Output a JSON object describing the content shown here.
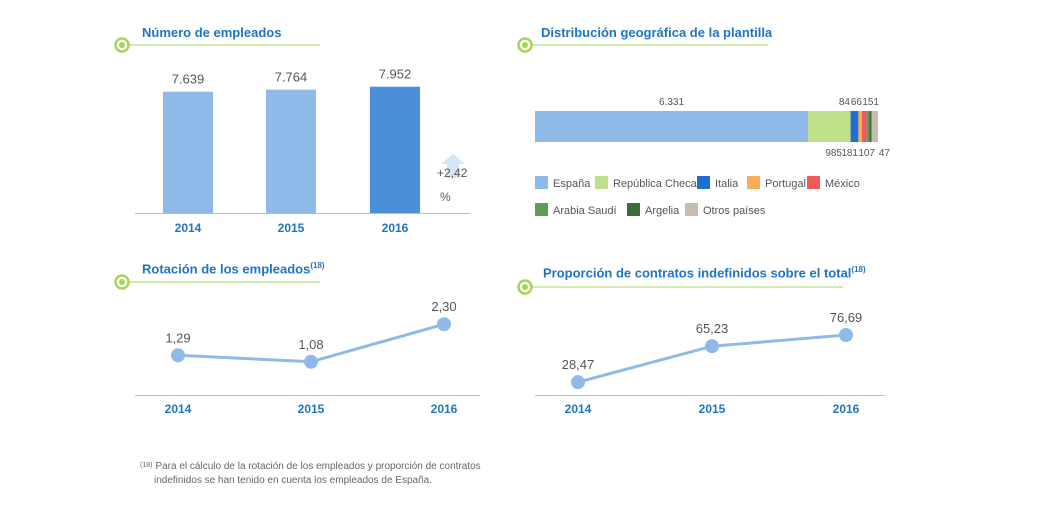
{
  "colors": {
    "accent_green": "#a6d45a",
    "title_blue": "#1f74c4",
    "bar_light": "#8fbae8",
    "bar_dark": "#4a90d9",
    "line": "#8fbae8",
    "point": "#8fbae8",
    "axis": "#bbbbbb",
    "arrow": "#d3e5f7"
  },
  "panels": {
    "employees": {
      "title": "Número de empleados",
      "change_value": "+2,42",
      "change_unit": "%",
      "change_icon": "up-arrow-icon"
    },
    "geo": {
      "title": "Distribución geográfica de la plantilla"
    },
    "rotation": {
      "title": "Rotación de los empleados",
      "title_sup": "(18)"
    },
    "contracts": {
      "title": "Proporción de contratos indefinidos sobre el total",
      "title_sup": "(18)"
    }
  },
  "footnote": {
    "mark": "(18)",
    "line1": "Para el cálculo de la rotación de los empleados y proporción de contratos",
    "line2": "indefinidos se han tenido en cuenta los empleados de España."
  },
  "chart_data": [
    {
      "id": "employees",
      "type": "bar",
      "categories": [
        "2014",
        "2015",
        "2016"
      ],
      "values": [
        7639,
        7764,
        7952
      ],
      "value_labels": [
        "7.639",
        "7.764",
        "7.952"
      ],
      "highlight_index": 2,
      "ylim": [
        0,
        8500
      ]
    },
    {
      "id": "geo",
      "type": "bar",
      "orientation": "horizontal-stacked",
      "series": [
        {
          "name": "España",
          "value": 6331,
          "label": "6.331",
          "color": "#8fbae8"
        },
        {
          "name": "República Checa",
          "value": 985,
          "label": "985",
          "color": "#bfe08a"
        },
        {
          "name": "Italia",
          "value": 181,
          "label": "181",
          "color": "#1f6fd0"
        },
        {
          "name": "Portugal",
          "value": 84,
          "label": "84",
          "color": "#f8ad57"
        },
        {
          "name": "México",
          "value": 107,
          "label": "107",
          "color": "#f05a5a"
        },
        {
          "name": "Arabia Saudí",
          "value": 66,
          "label": "66",
          "color": "#5c9e58"
        },
        {
          "name": "Argelia",
          "value": 47,
          "label": "47",
          "color": "#3d6b3a"
        },
        {
          "name": "Otros países",
          "value": 151,
          "label": "151",
          "color": "#c7bcb0"
        }
      ]
    },
    {
      "id": "rotation",
      "type": "line",
      "x": [
        "2014",
        "2015",
        "2016"
      ],
      "values": [
        1.29,
        1.08,
        2.3
      ],
      "value_labels": [
        "1,29",
        "1,08",
        "2,30"
      ],
      "ylim": [
        0,
        2.6
      ]
    },
    {
      "id": "contracts",
      "type": "line",
      "x": [
        "2014",
        "2015",
        "2016"
      ],
      "values": [
        28.47,
        65.23,
        76.69
      ],
      "value_labels": [
        "28,47",
        "65,23",
        "76,69"
      ],
      "ylim": [
        0,
        90
      ]
    }
  ]
}
